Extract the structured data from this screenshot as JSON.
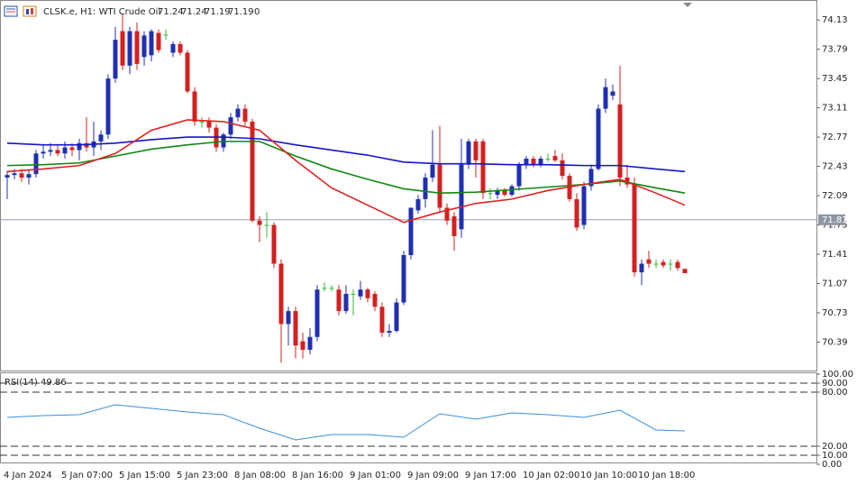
{
  "chart_data": [
    {
      "type": "candlestick",
      "title": "CLSK.e, H1:  WTI Crude Oil",
      "tick_volume": 0,
      "categories": [
        "4 Jan 2024",
        null,
        null,
        null,
        null,
        null,
        null,
        null,
        "5 Jan 07:00",
        null,
        null,
        null,
        null,
        null,
        null,
        null,
        "5 Jan 15:00",
        null,
        null,
        null,
        null,
        null,
        null,
        null,
        "5 Jan 23:00",
        null,
        null,
        null,
        null,
        null,
        null,
        null,
        "8 Jan 08:00",
        null,
        null,
        null,
        null,
        null,
        null,
        null,
        "8 Jan 16:00",
        null,
        null,
        null,
        null,
        null,
        null,
        null,
        "9 Jan 01:00",
        null,
        null,
        null,
        null,
        null,
        null,
        null,
        "9 Jan 09:00",
        null,
        null,
        null,
        null,
        null,
        null,
        null,
        "9 Jan 17:00",
        null,
        null,
        null,
        null,
        null,
        null,
        null,
        "10 Jan 02:00",
        null,
        null,
        null,
        null,
        null,
        null,
        null,
        "10 Jan 10:00",
        null,
        null,
        null,
        null,
        null,
        null,
        null,
        "10 Jan 18:00",
        null,
        null,
        null,
        null,
        null,
        null
      ],
      "open": [
        72.3,
        72.33,
        72.35,
        72.3,
        72.34,
        72.58,
        72.6,
        72.62,
        72.58,
        72.65,
        72.62,
        72.7,
        72.65,
        72.72,
        72.8,
        73.45,
        74.0,
        73.6,
        74.0,
        73.7,
        73.72,
        73.98,
        73.96,
        73.75,
        73.85,
        73.75,
        73.3,
        72.95,
        72.95,
        72.88,
        72.65,
        72.8,
        73.0,
        73.1,
        72.95,
        71.8,
        71.75,
        71.75,
        71.3,
        70.6,
        70.75,
        70.4,
        70.3,
        70.45,
        71.02,
        71.02,
        71.0,
        70.75,
        70.95,
        70.92,
        71.0,
        70.95,
        70.8,
        70.5,
        70.52,
        70.85,
        71.4,
        71.92,
        72.05,
        72.3,
        72.45,
        71.95,
        71.85,
        71.7,
        72.45,
        72.72,
        72.72,
        72.12,
        72.1,
        72.15,
        72.1,
        72.2,
        72.45,
        72.52,
        72.45,
        72.52,
        72.55,
        72.5,
        72.32,
        72.05,
        71.75,
        72.2,
        72.4,
        73.1,
        73.25,
        73.15,
        72.3,
        72.22,
        71.2,
        71.35,
        71.3,
        71.32,
        71.3,
        71.32,
        71.24
      ],
      "high": [
        72.38,
        72.4,
        72.4,
        72.38,
        72.62,
        72.68,
        72.7,
        72.68,
        72.72,
        72.7,
        72.75,
        73.0,
        72.95,
        72.85,
        73.5,
        74.05,
        74.2,
        74.05,
        74.1,
        74.0,
        74.02,
        74.02,
        74.02,
        73.88,
        73.88,
        73.78,
        73.35,
        73.0,
        73.0,
        72.92,
        72.82,
        73.05,
        73.15,
        73.15,
        72.98,
        71.85,
        71.9,
        71.78,
        71.35,
        70.8,
        70.8,
        70.5,
        70.55,
        71.05,
        71.08,
        71.05,
        71.05,
        71.05,
        71.0,
        71.1,
        71.02,
        70.98,
        70.85,
        70.6,
        70.9,
        71.45,
        71.95,
        72.1,
        72.35,
        72.85,
        72.9,
        72.0,
        71.9,
        72.75,
        72.75,
        72.75,
        72.75,
        72.18,
        72.18,
        72.18,
        72.22,
        72.48,
        72.55,
        72.55,
        72.55,
        72.58,
        72.62,
        72.58,
        72.35,
        72.12,
        72.25,
        72.45,
        73.15,
        73.45,
        73.38,
        73.6,
        72.45,
        72.3,
        71.35,
        71.45,
        71.35,
        71.35,
        71.35,
        71.35,
        71.24
      ],
      "low": [
        72.05,
        72.28,
        72.25,
        72.22,
        72.3,
        72.52,
        72.55,
        72.55,
        72.52,
        72.55,
        72.5,
        72.6,
        72.55,
        72.62,
        72.75,
        73.4,
        73.55,
        73.5,
        73.55,
        73.6,
        73.65,
        73.75,
        73.9,
        73.7,
        73.72,
        73.28,
        72.9,
        72.88,
        72.82,
        72.6,
        72.6,
        72.75,
        72.95,
        72.9,
        71.78,
        71.55,
        71.6,
        71.25,
        70.15,
        70.35,
        70.2,
        70.2,
        70.25,
        70.4,
        70.98,
        70.98,
        70.7,
        70.72,
        70.7,
        70.88,
        70.85,
        70.75,
        70.45,
        70.45,
        70.5,
        70.82,
        71.35,
        71.88,
        71.95,
        72.25,
        71.9,
        71.75,
        71.45,
        71.6,
        72.4,
        72.3,
        72.05,
        72.05,
        72.05,
        72.08,
        72.08,
        72.15,
        72.4,
        72.42,
        72.42,
        72.48,
        72.48,
        72.28,
        72.02,
        71.68,
        71.7,
        72.15,
        72.38,
        73.05,
        73.2,
        72.2,
        72.18,
        71.15,
        71.05,
        71.25,
        71.25,
        71.25,
        71.22,
        71.22,
        71.19
      ],
      "close": [
        72.33,
        72.35,
        72.3,
        72.34,
        72.58,
        72.6,
        72.62,
        72.58,
        72.65,
        72.62,
        72.7,
        72.65,
        72.72,
        72.8,
        73.45,
        73.9,
        73.6,
        74.0,
        73.62,
        73.95,
        74.0,
        73.78,
        73.96,
        73.85,
        73.75,
        73.3,
        72.95,
        72.95,
        72.88,
        72.65,
        72.8,
        73.0,
        73.1,
        72.95,
        71.8,
        71.75,
        71.75,
        71.3,
        70.6,
        70.75,
        70.35,
        70.3,
        70.45,
        71.0,
        71.02,
        71.02,
        70.75,
        70.95,
        70.95,
        71.0,
        70.9,
        70.8,
        70.5,
        70.52,
        70.85,
        71.4,
        71.95,
        72.05,
        72.3,
        72.45,
        71.95,
        71.8,
        71.62,
        72.45,
        72.72,
        72.5,
        72.12,
        72.12,
        72.15,
        72.1,
        72.2,
        72.45,
        72.52,
        72.45,
        72.52,
        72.52,
        72.5,
        72.32,
        72.05,
        71.72,
        72.2,
        72.4,
        73.1,
        73.35,
        73.3,
        72.3,
        72.22,
        71.2,
        71.3,
        71.3,
        71.3,
        71.28,
        71.3,
        71.25,
        71.19
      ],
      "up_color": "#2030b0",
      "down_color": "#d42020",
      "doji_color": "#33bb33",
      "series": [
        {
          "color": "#1515c8",
          "x": [
            0,
            5,
            10,
            15,
            20,
            25,
            30,
            35,
            40,
            45,
            50,
            55,
            60,
            65,
            70,
            75,
            80,
            85,
            90,
            94
          ],
          "values": [
            72.7,
            72.68,
            72.68,
            72.7,
            72.74,
            72.77,
            72.77,
            72.75,
            72.68,
            72.62,
            72.56,
            72.48,
            72.46,
            72.46,
            72.45,
            72.45,
            72.44,
            72.44,
            72.4,
            72.37
          ]
        },
        {
          "color": "#118811",
          "x": [
            0,
            5,
            10,
            15,
            20,
            25,
            30,
            35,
            40,
            45,
            50,
            55,
            60,
            65,
            70,
            75,
            80,
            85,
            90,
            94
          ],
          "values": [
            72.44,
            72.45,
            72.47,
            72.55,
            72.63,
            72.68,
            72.72,
            72.72,
            72.55,
            72.4,
            72.28,
            72.17,
            72.12,
            72.13,
            72.16,
            72.19,
            72.22,
            72.26,
            72.18,
            72.12
          ]
        },
        {
          "color": "#e02020",
          "x": [
            0,
            5,
            10,
            15,
            20,
            25,
            30,
            35,
            40,
            45,
            50,
            55,
            60,
            65,
            70,
            75,
            80,
            85,
            90,
            94
          ],
          "values": [
            72.37,
            72.4,
            72.44,
            72.58,
            72.85,
            72.97,
            72.95,
            72.85,
            72.5,
            72.18,
            71.98,
            71.78,
            71.9,
            72.0,
            72.05,
            72.15,
            72.22,
            72.28,
            72.12,
            71.98
          ]
        }
      ],
      "price_line": {
        "value": 71.81,
        "label": "71.81"
      },
      "ylim": [
        70.06,
        74.32
      ],
      "yticks": [
        74.13,
        73.79,
        73.45,
        73.11,
        72.77,
        72.43,
        72.09,
        71.75,
        71.41,
        71.07,
        70.73,
        70.39
      ]
    },
    {
      "type": "line",
      "title": "RSI(14) 49.86",
      "series": [
        {
          "color": "#3a8fd8",
          "x": [
            0,
            5,
            10,
            15,
            20,
            25,
            30,
            35,
            40,
            45,
            50,
            55,
            60,
            65,
            70,
            75,
            80,
            85,
            90,
            94
          ],
          "values": [
            52,
            54,
            55,
            66,
            62,
            58,
            55,
            40,
            27,
            33,
            33,
            30,
            56,
            50,
            57,
            55,
            52,
            60,
            38,
            37
          ]
        }
      ],
      "ylim": [
        0,
        100
      ],
      "yticks": [
        {
          "value": 100,
          "label": "100.00"
        },
        {
          "value": 90,
          "label": "90.00"
        },
        {
          "value": 80,
          "label": "80.00"
        },
        {
          "value": 20,
          "label": "20.00"
        },
        {
          "value": 10,
          "label": "10.00"
        },
        {
          "value": 0,
          "label": "0.00"
        }
      ]
    }
  ]
}
